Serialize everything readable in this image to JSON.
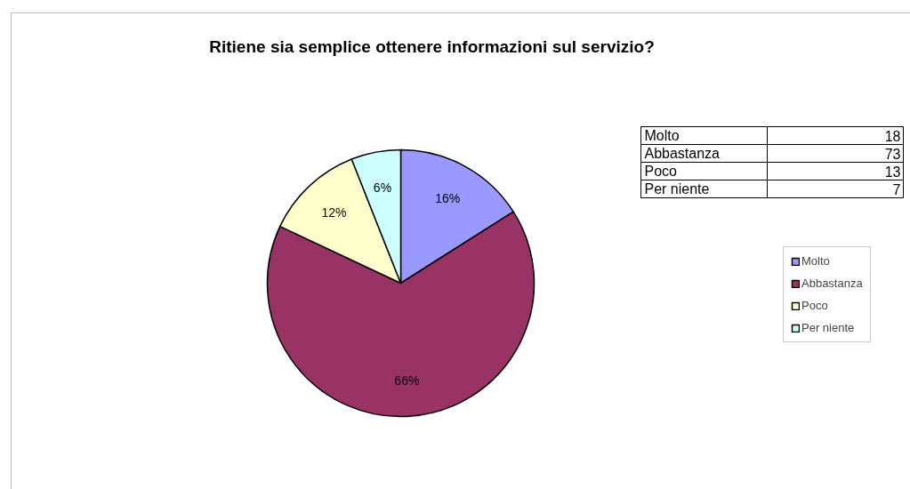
{
  "chart_data": [
    {
      "type": "pie",
      "title": "Ritiene sia semplice ottenere informazioni sul servizio?",
      "categories": [
        "Molto",
        "Abbastanza",
        "Poco",
        "Per niente"
      ],
      "values": [
        16,
        66,
        12,
        6
      ],
      "colors": [
        "#9999ff",
        "#993366",
        "#ffffcc",
        "#ccffff"
      ],
      "value_labels": [
        "16%",
        "66%",
        "12%",
        "6%"
      ],
      "legend": "right"
    },
    {
      "type": "other",
      "categories": [
        "Molto",
        "Abbastanza",
        "Poco",
        "Per niente"
      ],
      "values": [
        18,
        73,
        13,
        7
      ],
      "data_labels": true
    }
  ]
}
